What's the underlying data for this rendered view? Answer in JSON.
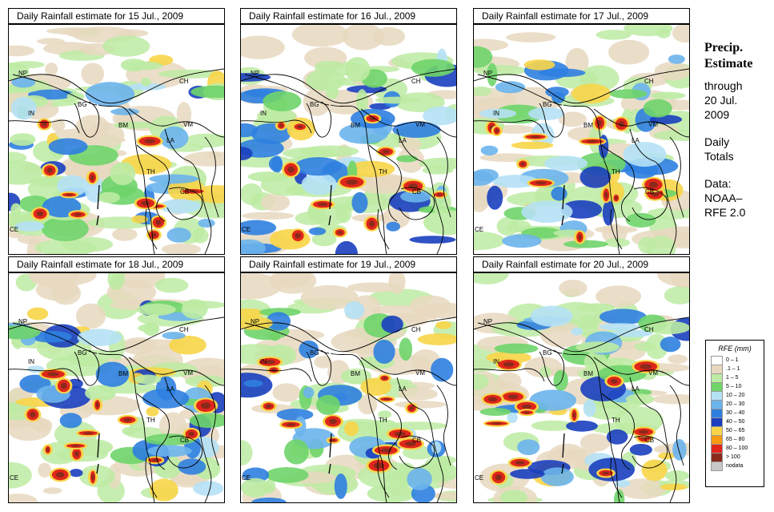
{
  "panels": [
    {
      "title": "Daily Rainfall estimate for  15 Jul., 2009",
      "intensity": 0.55
    },
    {
      "title": "Daily Rainfall estimate for  16 Jul., 2009",
      "intensity": 0.6
    },
    {
      "title": "Daily Rainfall estimate for  17 Jul., 2009",
      "intensity": 0.65
    },
    {
      "title": "Daily Rainfall estimate for  18 Jul., 2009",
      "intensity": 0.8
    },
    {
      "title": "Daily Rainfall estimate for  19 Jul., 2009",
      "intensity": 0.7
    },
    {
      "title": "Daily Rainfall estimate for  20 Jul., 2009",
      "intensity": 0.75
    }
  ],
  "country_labels": {
    "np": "NP",
    "ch": "CH",
    "in": "IN",
    "bg": "BG",
    "bm": "BM",
    "vm": "VM",
    "la": "LA",
    "th": "TH",
    "cb": "CB",
    "ce": "CE"
  },
  "side": {
    "title_line1": "Precip.",
    "title_line2": "Estimate",
    "through": "through",
    "date_line1": "20 Jul.",
    "date_line2": "2009",
    "daily_line1": "Daily",
    "daily_line2": "Totals",
    "data_line1": "Data:",
    "data_line2": "NOAA–",
    "data_line3": "RFE 2.0"
  },
  "legend": {
    "title": "RFE (mm)",
    "items": [
      {
        "label": "0 – 1",
        "color": "#ffffff"
      },
      {
        "label": ".1 – 1",
        "color": "#e8d8bf"
      },
      {
        "label": "1 – 5",
        "color": "#bdeba3"
      },
      {
        "label": "5 – 10",
        "color": "#6fd46a"
      },
      {
        "label": "10 – 20",
        "color": "#b5e1f5"
      },
      {
        "label": "20 – 30",
        "color": "#6cb4ec"
      },
      {
        "label": "30 – 40",
        "color": "#2f7fe0"
      },
      {
        "label": "40 – 50",
        "color": "#1a3fbf"
      },
      {
        "label": "50 – 65",
        "color": "#f8d548"
      },
      {
        "label": "65 – 80",
        "color": "#f59a12"
      },
      {
        "label": "80 – 100",
        "color": "#e0261a"
      },
      {
        "label": "> 100",
        "color": "#8a2a1c"
      },
      {
        "label": "nodata",
        "color": "#c8c8c8"
      }
    ]
  }
}
